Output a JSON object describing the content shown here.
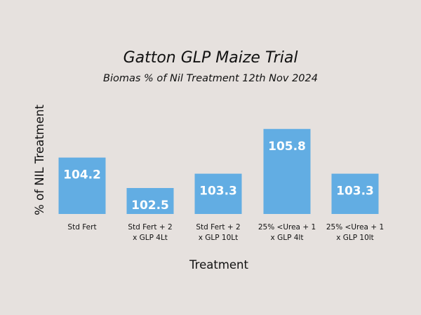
{
  "chart_data": {
    "type": "bar",
    "title": "Gatton GLP Maize Trial",
    "subtitle": "Biomas % of Nil Treatment 12th Nov 2024",
    "xlabel": "Treatment",
    "ylabel": "% of NIL Treatment",
    "categories": [
      [
        "Std Fert"
      ],
      [
        "Std Fert + 2",
        "x GLP 4Lt"
      ],
      [
        "Std Fert + 2",
        "x GLP 10Lt"
      ],
      [
        "25% <Urea + 1",
        "x GLP 4lt"
      ],
      [
        "25% <Urea + 1",
        "x GLP 10lt"
      ]
    ],
    "values": [
      104.2,
      102.5,
      103.3,
      105.8,
      103.3
    ],
    "value_labels": [
      "104.2",
      "102.5",
      "103.3",
      "105.8",
      "103.3"
    ],
    "ylim": [
      101.05,
      106.34
    ],
    "grid": false,
    "bar_color": "#62ade3",
    "background_color": "#e6e1de"
  }
}
